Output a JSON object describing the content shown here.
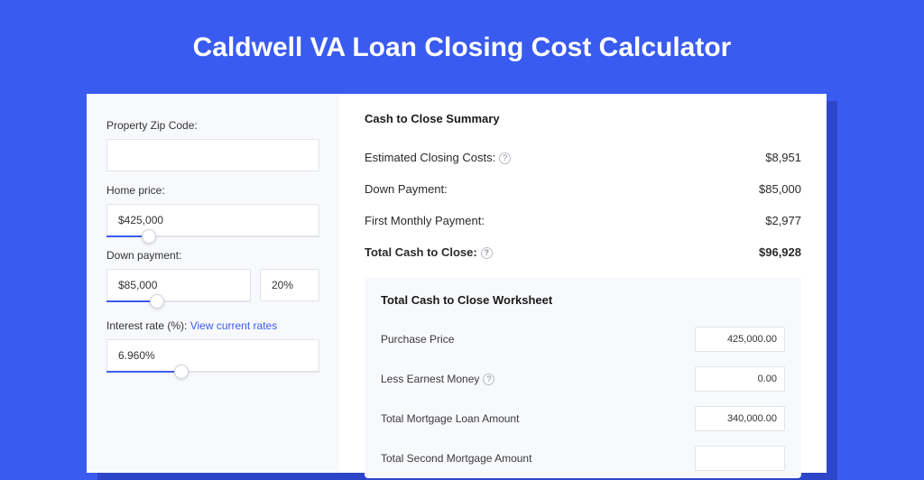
{
  "page": {
    "title": "Caldwell VA Loan Closing Cost Calculator",
    "background_color": "#3a5bf0",
    "shadow_color": "#2d46c9"
  },
  "form": {
    "zip_label": "Property Zip Code:",
    "zip_value": "",
    "home_price_label": "Home price:",
    "home_price_value": "$425,000",
    "home_price_slider_pct": 20,
    "down_payment_label": "Down payment:",
    "down_payment_value": "$85,000",
    "down_payment_slider_pct": 35,
    "down_payment_pct_value": "20%",
    "interest_label": "Interest rate (%):",
    "interest_link": "View current rates",
    "interest_value": "6.960%",
    "interest_slider_pct": 35
  },
  "summary": {
    "header": "Cash to Close Summary",
    "rows": [
      {
        "label": "Estimated Closing Costs:",
        "help": true,
        "value": "$8,951",
        "bold": false
      },
      {
        "label": "Down Payment:",
        "help": false,
        "value": "$85,000",
        "bold": false
      },
      {
        "label": "First Monthly Payment:",
        "help": false,
        "value": "$2,977",
        "bold": false
      },
      {
        "label": "Total Cash to Close:",
        "help": true,
        "value": "$96,928",
        "bold": true
      }
    ]
  },
  "worksheet": {
    "header": "Total Cash to Close Worksheet",
    "rows": [
      {
        "label": "Purchase Price",
        "help": false,
        "value": "425,000.00"
      },
      {
        "label": "Less Earnest Money",
        "help": true,
        "value": "0.00"
      },
      {
        "label": "Total Mortgage Loan Amount",
        "help": false,
        "value": "340,000.00"
      },
      {
        "label": "Total Second Mortgage Amount",
        "help": false,
        "value": ""
      }
    ]
  },
  "styling": {
    "input_border": "#e2e4ea",
    "panel_bg": "#f8f9fc",
    "text_color": "#333333",
    "accent": "#3a5bf0"
  }
}
